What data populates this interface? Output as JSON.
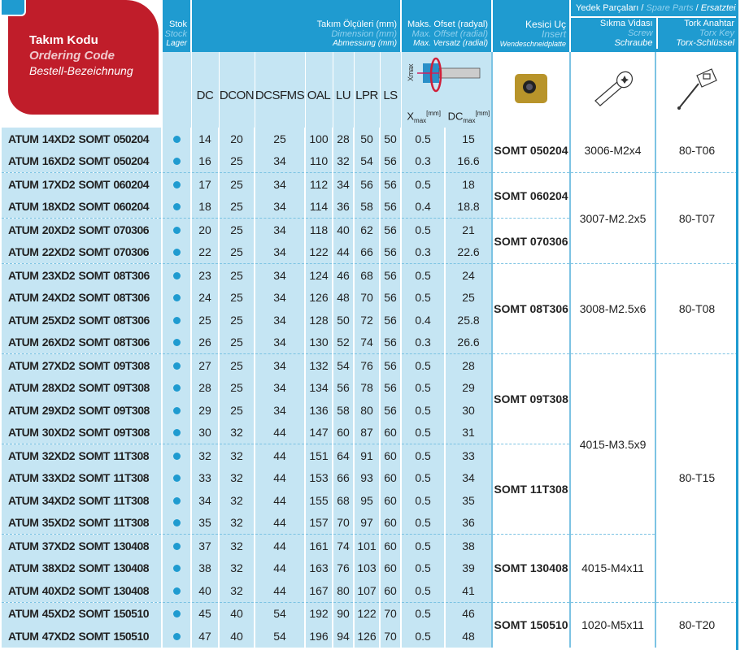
{
  "header": {
    "code": {
      "tr": "Takım Kodu",
      "en": "Ordering Code",
      "de": "Bestell-Bezeichnung"
    },
    "stock": {
      "tr": "Stok",
      "en": "Stock",
      "de": "Lager"
    },
    "dimension": {
      "tr": "Takım Ölçüleri (mm)",
      "en": "Dimension (mm)",
      "de": "Abmessung (mm)"
    },
    "offset": {
      "tr": "Maks. Ofset (radyal)",
      "en": "Max. Offset (radial)",
      "de": "Max. Versatz (radial)"
    },
    "insert": {
      "tr": "Kesici Uç",
      "en": "Insert",
      "de": "Wendeschneidplatte"
    },
    "spare": {
      "tr": "Yedek Parçaları",
      "en": "Spare Parts",
      "de": "Ersatzteile",
      "sep": "/"
    },
    "screw": {
      "tr": "Sıkma Vidası",
      "en": "Screw",
      "de": "Schraube"
    },
    "key": {
      "tr": "Tork Anahtar",
      "en": "Torx Key",
      "de": "Torx-Schlüssel"
    },
    "columns": [
      "DC",
      "DCON",
      "DCSFMS",
      "OAL",
      "LU",
      "LPR",
      "LS"
    ],
    "xmax": {
      "base": "X",
      "sub": "max",
      "unit": "[mm]"
    },
    "dcmax": {
      "base": "DC",
      "sub": "max",
      "unit": "[mm]"
    },
    "diagram_label": "Xmax"
  },
  "colors": {
    "blue": "#1f9bd0",
    "light_blue": "#c5e5f3",
    "red": "#c01d2a"
  },
  "rows": [
    {
      "code": "ATUM 14XD2 SOMT 050204",
      "v": [
        "14",
        "20",
        "25",
        "100",
        "28",
        "50",
        "50",
        "0.5",
        "15"
      ]
    },
    {
      "code": "ATUM 16XD2 SOMT 050204",
      "v": [
        "16",
        "25",
        "34",
        "110",
        "32",
        "54",
        "56",
        "0.3",
        "16.6"
      ]
    },
    {
      "code": "ATUM 17XD2 SOMT 060204",
      "v": [
        "17",
        "25",
        "34",
        "112",
        "34",
        "56",
        "56",
        "0.5",
        "18"
      ]
    },
    {
      "code": "ATUM 18XD2 SOMT 060204",
      "v": [
        "18",
        "25",
        "34",
        "114",
        "36",
        "58",
        "56",
        "0.4",
        "18.8"
      ]
    },
    {
      "code": "ATUM 20XD2 SOMT 070306",
      "v": [
        "20",
        "25",
        "34",
        "118",
        "40",
        "62",
        "56",
        "0.5",
        "21"
      ]
    },
    {
      "code": "ATUM 22XD2 SOMT 070306",
      "v": [
        "22",
        "25",
        "34",
        "122",
        "44",
        "66",
        "56",
        "0.3",
        "22.6"
      ]
    },
    {
      "code": "ATUM 23XD2 SOMT 08T306",
      "v": [
        "23",
        "25",
        "34",
        "124",
        "46",
        "68",
        "56",
        "0.5",
        "24"
      ]
    },
    {
      "code": "ATUM 24XD2 SOMT 08T306",
      "v": [
        "24",
        "25",
        "34",
        "126",
        "48",
        "70",
        "56",
        "0.5",
        "25"
      ]
    },
    {
      "code": "ATUM 25XD2 SOMT 08T306",
      "v": [
        "25",
        "25",
        "34",
        "128",
        "50",
        "72",
        "56",
        "0.4",
        "25.8"
      ]
    },
    {
      "code": "ATUM 26XD2 SOMT 08T306",
      "v": [
        "26",
        "25",
        "34",
        "130",
        "52",
        "74",
        "56",
        "0.3",
        "26.6"
      ]
    },
    {
      "code": "ATUM 27XD2 SOMT 09T308",
      "v": [
        "27",
        "25",
        "34",
        "132",
        "54",
        "76",
        "56",
        "0.5",
        "28"
      ]
    },
    {
      "code": "ATUM 28XD2 SOMT 09T308",
      "v": [
        "28",
        "25",
        "34",
        "134",
        "56",
        "78",
        "56",
        "0.5",
        "29"
      ]
    },
    {
      "code": "ATUM 29XD2 SOMT 09T308",
      "v": [
        "29",
        "25",
        "34",
        "136",
        "58",
        "80",
        "56",
        "0.5",
        "30"
      ]
    },
    {
      "code": "ATUM 30XD2 SOMT 09T308",
      "v": [
        "30",
        "32",
        "44",
        "147",
        "60",
        "87",
        "60",
        "0.5",
        "31"
      ]
    },
    {
      "code": "ATUM 32XD2 SOMT 11T308",
      "v": [
        "32",
        "32",
        "44",
        "151",
        "64",
        "91",
        "60",
        "0.5",
        "33"
      ]
    },
    {
      "code": "ATUM 33XD2 SOMT 11T308",
      "v": [
        "33",
        "32",
        "44",
        "153",
        "66",
        "93",
        "60",
        "0.5",
        "34"
      ]
    },
    {
      "code": "ATUM 34XD2 SOMT 11T308",
      "v": [
        "34",
        "32",
        "44",
        "155",
        "68",
        "95",
        "60",
        "0.5",
        "35"
      ]
    },
    {
      "code": "ATUM 35XD2 SOMT 11T308",
      "v": [
        "35",
        "32",
        "44",
        "157",
        "70",
        "97",
        "60",
        "0.5",
        "36"
      ]
    },
    {
      "code": "ATUM 37XD2 SOMT 130408",
      "v": [
        "37",
        "32",
        "44",
        "161",
        "74",
        "101",
        "60",
        "0.5",
        "38"
      ]
    },
    {
      "code": "ATUM 38XD2 SOMT 130408",
      "v": [
        "38",
        "32",
        "44",
        "163",
        "76",
        "103",
        "60",
        "0.5",
        "39"
      ]
    },
    {
      "code": "ATUM 40XD2 SOMT 130408",
      "v": [
        "40",
        "32",
        "44",
        "167",
        "80",
        "107",
        "60",
        "0.5",
        "41"
      ]
    },
    {
      "code": "ATUM 45XD2 SOMT 150510",
      "v": [
        "45",
        "40",
        "54",
        "192",
        "90",
        "122",
        "70",
        "0.5",
        "46"
      ]
    },
    {
      "code": "ATUM 47XD2 SOMT 150510",
      "v": [
        "47",
        "40",
        "54",
        "196",
        "94",
        "126",
        "70",
        "0.5",
        "48"
      ]
    }
  ],
  "inserts": [
    {
      "label": "SOMT 050204",
      "start": 0,
      "span": 2
    },
    {
      "label": "SOMT 060204",
      "start": 2,
      "span": 2
    },
    {
      "label": "SOMT 070306",
      "start": 4,
      "span": 2
    },
    {
      "label": "SOMT 08T306",
      "start": 6,
      "span": 4
    },
    {
      "label": "SOMT 09T308",
      "start": 10,
      "span": 4
    },
    {
      "label": "SOMT 11T308",
      "start": 14,
      "span": 4
    },
    {
      "label": "SOMT 130408",
      "start": 18,
      "span": 3
    },
    {
      "label": "SOMT 150510",
      "start": 21,
      "span": 2
    }
  ],
  "screws": [
    {
      "label": "3006-M2x4",
      "start": 0,
      "span": 2
    },
    {
      "label": "3007-M2.2x5",
      "start": 2,
      "span": 4
    },
    {
      "label": "3008-M2.5x6",
      "start": 6,
      "span": 4
    },
    {
      "label": "4015-M3.5x9",
      "start": 10,
      "span": 8
    },
    {
      "label": "4015-M4x11",
      "start": 18,
      "span": 3
    },
    {
      "label": "1020-M5x11",
      "start": 21,
      "span": 2
    }
  ],
  "keys": [
    {
      "label": "80-T06",
      "start": 0,
      "span": 2
    },
    {
      "label": "80-T07",
      "start": 2,
      "span": 4
    },
    {
      "label": "80-T08",
      "start": 6,
      "span": 4
    },
    {
      "label": "80-T15",
      "start": 10,
      "span": 11
    },
    {
      "label": "80-T20",
      "start": 21,
      "span": 2
    }
  ]
}
